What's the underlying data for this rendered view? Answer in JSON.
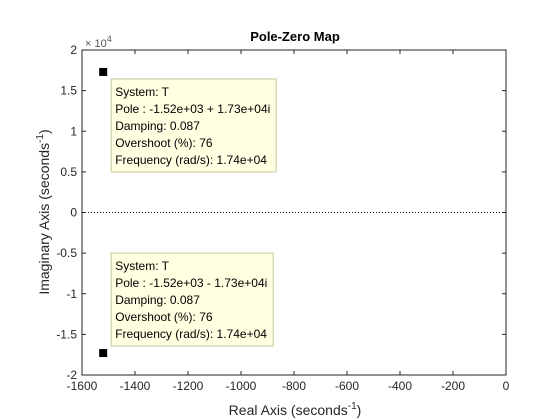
{
  "window": {
    "background": "#ffffff"
  },
  "chart_data": {
    "type": "scatter",
    "title": "Pole-Zero Map",
    "xlabel": "Real Axis (seconds",
    "xlabel_sup": "-1",
    "xlabel_end": ")",
    "ylabel": "Imaginary Axis (seconds",
    "ylabel_sup": "-1",
    "ylabel_end": ")",
    "xlim": [
      -1600,
      0
    ],
    "ylim": [
      -20000,
      20000
    ],
    "xticks": [
      -1600,
      -1400,
      -1200,
      -1000,
      -800,
      -600,
      -400,
      -200,
      0
    ],
    "yticks": [
      -20000,
      -15000,
      -10000,
      -5000,
      0,
      5000,
      10000,
      15000,
      20000
    ],
    "xtick_labels": [
      "-1600",
      "-1400",
      "-1200",
      "-1000",
      "-800",
      "-600",
      "-400",
      "-200",
      "0"
    ],
    "ytick_labels": [
      "-2",
      "-1.5",
      "-1",
      "-0.5",
      "0",
      "0.5",
      "1",
      "1.5",
      "2"
    ],
    "y_exponent_base": "× 10",
    "y_exponent_power": "4",
    "grid": false,
    "zero_line": "dotted",
    "colors": {
      "marker": "#000000",
      "axes": "#262626",
      "tooltip_bg": "#ffffe1",
      "tooltip_border": "#c8c8a0"
    },
    "series": [
      {
        "marker": "square",
        "points": [
          {
            "x": -1520,
            "y": 17300
          },
          {
            "x": -1520,
            "y": -17300
          }
        ]
      }
    ],
    "annotations": [
      {
        "lines": [
          "System: T",
          "Pole : -1.52e+03 + 1.73e+04i",
          "Damping: 0.087",
          "Overshoot (%): 76",
          "Frequency (rad/s): 1.74e+04"
        ]
      },
      {
        "lines": [
          "System: T",
          "Pole : -1.52e+03 - 1.73e+04i",
          "Damping: 0.087",
          "Overshoot (%): 76",
          "Frequency (rad/s): 1.74e+04"
        ]
      }
    ]
  }
}
